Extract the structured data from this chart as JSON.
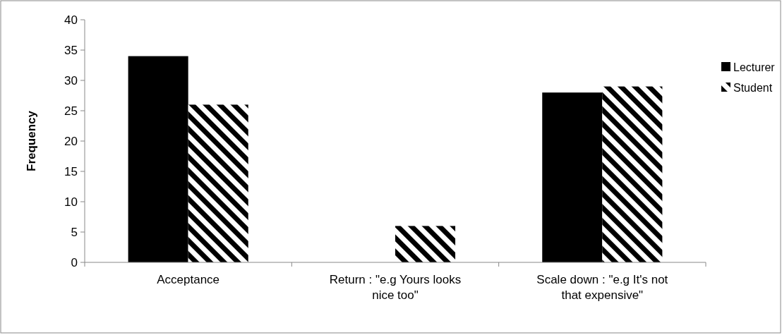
{
  "chart_data": {
    "type": "bar",
    "ylabel": "Frequency",
    "categories": [
      "Acceptance",
      "Return : \"e.g Yours looks nice too\"",
      "Scale down : \"e.g It's not that expensive\""
    ],
    "series": [
      {
        "name": "Lecturer",
        "color": "#000000",
        "values": [
          34,
          0,
          28
        ]
      },
      {
        "name": "Student",
        "color": "#000000",
        "values": [
          26,
          6,
          29
        ]
      }
    ],
    "ylim": [
      0,
      40
    ],
    "yticks": [
      0,
      5,
      10,
      15,
      20,
      25,
      30,
      35,
      40
    ],
    "grid": false,
    "legend": "right"
  }
}
